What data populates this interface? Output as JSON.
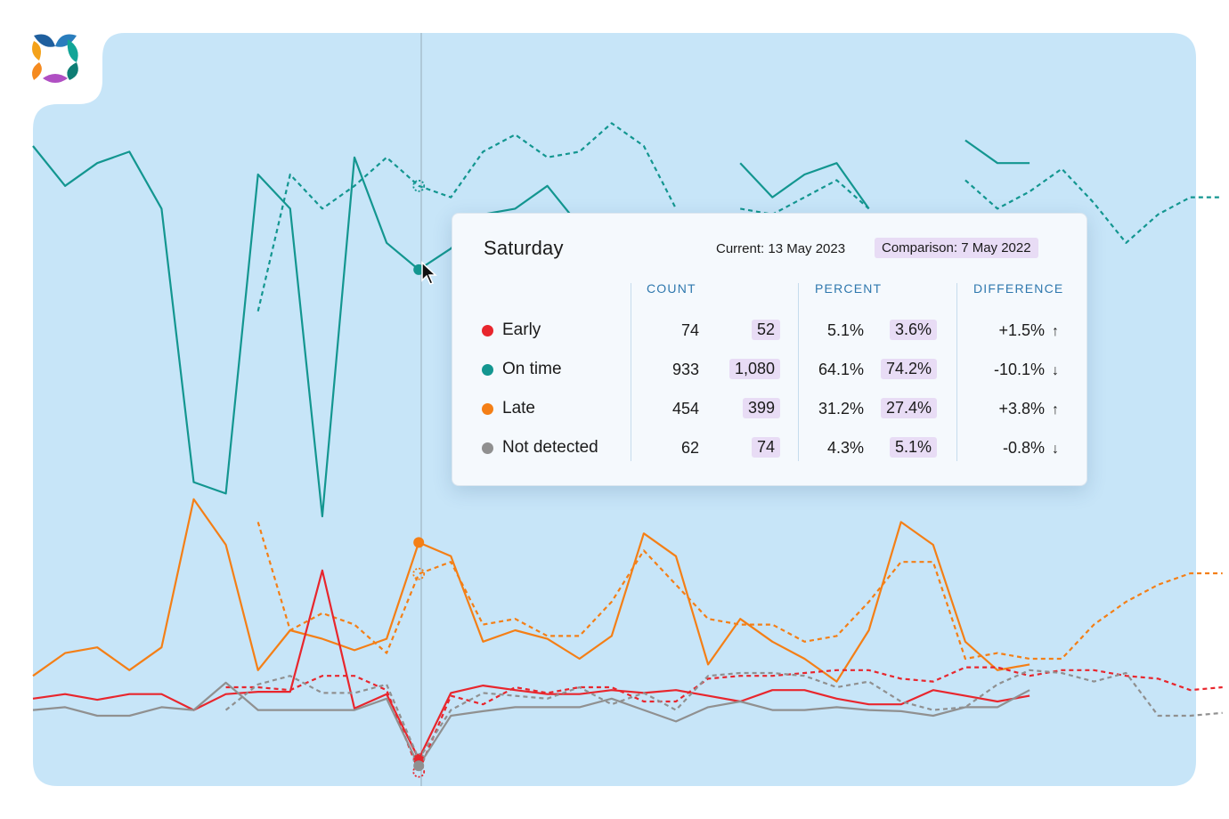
{
  "tooltip": {
    "day": "Saturday",
    "current_label": "Current: 13 May 2023",
    "comparison_label": "Comparison: 7 May 2022",
    "headers": {
      "count": "COUNT",
      "percent": "PERCENT",
      "difference": "DIFFERENCE"
    },
    "rows": [
      {
        "label": "Early",
        "color": "#e8262d",
        "count": "74",
        "count_cmp": "52",
        "pct": "5.1%",
        "pct_cmp": "3.6%",
        "diff": "+1.5%",
        "dir": "up"
      },
      {
        "label": "On time",
        "color": "#139690",
        "count": "933",
        "count_cmp": "1,080",
        "pct": "64.1%",
        "pct_cmp": "74.2%",
        "diff": "-10.1%",
        "dir": "down"
      },
      {
        "label": "Late",
        "color": "#f47f16",
        "count": "454",
        "count_cmp": "399",
        "pct": "31.2%",
        "pct_cmp": "27.4%",
        "diff": "+3.8%",
        "dir": "up"
      },
      {
        "label": "Not detected",
        "color": "#909090",
        "count": "62",
        "count_cmp": "74",
        "pct": "4.3%",
        "pct_cmp": "5.1%",
        "diff": "-0.8%",
        "dir": "down"
      }
    ]
  },
  "chart_data": {
    "type": "line",
    "highlighted_x": 12,
    "ylim": [
      0,
      1200
    ],
    "grid": false,
    "series": [
      {
        "key": "on_time",
        "period": "current",
        "color": "#139690",
        "dashed": false,
        "points": [
          [
            0,
            1150
          ],
          [
            1,
            1080
          ],
          [
            2,
            1120
          ],
          [
            3,
            1140
          ],
          [
            4,
            1040
          ],
          [
            5,
            560
          ],
          [
            6,
            540
          ],
          [
            7,
            1100
          ],
          [
            8,
            1040
          ],
          [
            9,
            500
          ],
          [
            10,
            1130
          ],
          [
            11,
            980
          ],
          [
            12,
            933
          ],
          [
            13,
            970
          ],
          [
            14,
            1030
          ],
          [
            15,
            1040
          ],
          [
            16,
            1080
          ],
          [
            17,
            1010
          ],
          [
            18,
            null
          ],
          [
            19,
            null
          ],
          [
            20,
            null
          ],
          [
            21,
            null
          ],
          [
            22,
            1120
          ],
          [
            23,
            1060
          ],
          [
            24,
            1100
          ],
          [
            25,
            1120
          ],
          [
            26,
            1040
          ],
          [
            27,
            null
          ],
          [
            28,
            null
          ],
          [
            29,
            1160
          ],
          [
            30,
            1120
          ],
          [
            31,
            1120
          ]
        ]
      },
      {
        "key": "on_time",
        "period": "comparison",
        "color": "#139690",
        "dashed": true,
        "points": [
          [
            7,
            860
          ],
          [
            8,
            1100
          ],
          [
            9,
            1040
          ],
          [
            10,
            1080
          ],
          [
            11,
            1130
          ],
          [
            12,
            1080
          ],
          [
            13,
            1060
          ],
          [
            14,
            1140
          ],
          [
            15,
            1170
          ],
          [
            16,
            1130
          ],
          [
            17,
            1140
          ],
          [
            18,
            1190
          ],
          [
            19,
            1150
          ],
          [
            20,
            1040
          ],
          [
            21,
            null
          ],
          [
            22,
            1040
          ],
          [
            23,
            1030
          ],
          [
            24,
            1060
          ],
          [
            25,
            1090
          ],
          [
            26,
            1040
          ],
          [
            27,
            null
          ],
          [
            28,
            null
          ],
          [
            29,
            1090
          ],
          [
            30,
            1040
          ],
          [
            31,
            1070
          ],
          [
            32,
            1110
          ],
          [
            33,
            1050
          ],
          [
            34,
            980
          ],
          [
            35,
            1030
          ],
          [
            36,
            1060
          ],
          [
            37,
            1060
          ]
        ]
      },
      {
        "key": "late",
        "period": "current",
        "color": "#f47f16",
        "dashed": false,
        "points": [
          [
            0,
            220
          ],
          [
            1,
            260
          ],
          [
            2,
            270
          ],
          [
            3,
            230
          ],
          [
            4,
            270
          ],
          [
            5,
            530
          ],
          [
            6,
            450
          ],
          [
            7,
            230
          ],
          [
            8,
            300
          ],
          [
            9,
            285
          ],
          [
            10,
            265
          ],
          [
            11,
            285
          ],
          [
            12,
            454
          ],
          [
            13,
            430
          ],
          [
            14,
            280
          ],
          [
            15,
            300
          ],
          [
            16,
            285
          ],
          [
            17,
            250
          ],
          [
            18,
            290
          ],
          [
            19,
            470
          ],
          [
            20,
            430
          ],
          [
            21,
            240
          ],
          [
            22,
            320
          ],
          [
            23,
            280
          ],
          [
            24,
            250
          ],
          [
            25,
            210
          ],
          [
            26,
            300
          ],
          [
            27,
            490
          ],
          [
            28,
            450
          ],
          [
            29,
            280
          ],
          [
            30,
            230
          ],
          [
            31,
            240
          ]
        ]
      },
      {
        "key": "late",
        "period": "comparison",
        "color": "#f47f16",
        "dashed": true,
        "points": [
          [
            7,
            490
          ],
          [
            8,
            300
          ],
          [
            9,
            330
          ],
          [
            10,
            310
          ],
          [
            11,
            260
          ],
          [
            12,
            399
          ],
          [
            13,
            420
          ],
          [
            14,
            310
          ],
          [
            15,
            320
          ],
          [
            16,
            290
          ],
          [
            17,
            290
          ],
          [
            18,
            350
          ],
          [
            19,
            440
          ],
          [
            20,
            380
          ],
          [
            21,
            320
          ],
          [
            22,
            310
          ],
          [
            23,
            310
          ],
          [
            24,
            280
          ],
          [
            25,
            290
          ],
          [
            26,
            350
          ],
          [
            27,
            420
          ],
          [
            28,
            420
          ],
          [
            29,
            250
          ],
          [
            30,
            260
          ],
          [
            31,
            250
          ],
          [
            32,
            250
          ],
          [
            33,
            310
          ],
          [
            34,
            350
          ],
          [
            35,
            380
          ],
          [
            36,
            400
          ],
          [
            37,
            400
          ]
        ]
      },
      {
        "key": "early",
        "period": "current",
        "color": "#e8262d",
        "dashed": false,
        "points": [
          [
            0,
            180
          ],
          [
            1,
            188
          ],
          [
            2,
            178
          ],
          [
            3,
            188
          ],
          [
            4,
            188
          ],
          [
            5,
            160
          ],
          [
            6,
            188
          ],
          [
            7,
            192
          ],
          [
            8,
            192
          ],
          [
            9,
            405
          ],
          [
            10,
            163
          ],
          [
            11,
            188
          ],
          [
            12,
            74
          ],
          [
            13,
            190
          ],
          [
            14,
            203
          ],
          [
            15,
            195
          ],
          [
            16,
            188
          ],
          [
            17,
            188
          ],
          [
            18,
            195
          ],
          [
            19,
            190
          ],
          [
            20,
            195
          ],
          [
            21,
            185
          ],
          [
            22,
            175
          ],
          [
            23,
            195
          ],
          [
            24,
            195
          ],
          [
            25,
            180
          ],
          [
            26,
            170
          ],
          [
            27,
            170
          ],
          [
            28,
            195
          ],
          [
            29,
            185
          ],
          [
            30,
            175
          ],
          [
            31,
            185
          ]
        ]
      },
      {
        "key": "early",
        "period": "comparison",
        "color": "#e8262d",
        "dashed": true,
        "points": [
          [
            6,
            200
          ],
          [
            7,
            200
          ],
          [
            8,
            195
          ],
          [
            9,
            220
          ],
          [
            10,
            220
          ],
          [
            11,
            195
          ],
          [
            12,
            52
          ],
          [
            13,
            185
          ],
          [
            14,
            170
          ],
          [
            15,
            200
          ],
          [
            16,
            190
          ],
          [
            17,
            200
          ],
          [
            18,
            200
          ],
          [
            19,
            175
          ],
          [
            20,
            175
          ],
          [
            21,
            215
          ],
          [
            22,
            220
          ],
          [
            23,
            220
          ],
          [
            24,
            225
          ],
          [
            25,
            230
          ],
          [
            26,
            230
          ],
          [
            27,
            215
          ],
          [
            28,
            210
          ],
          [
            29,
            235
          ],
          [
            30,
            235
          ],
          [
            31,
            220
          ],
          [
            32,
            230
          ],
          [
            33,
            230
          ],
          [
            34,
            220
          ],
          [
            35,
            215
          ],
          [
            36,
            195
          ],
          [
            37,
            200
          ]
        ]
      },
      {
        "key": "not_detected",
        "period": "current",
        "color": "#909090",
        "dashed": false,
        "points": [
          [
            0,
            160
          ],
          [
            1,
            165
          ],
          [
            2,
            150
          ],
          [
            3,
            150
          ],
          [
            4,
            165
          ],
          [
            5,
            160
          ],
          [
            6,
            208
          ],
          [
            7,
            160
          ],
          [
            8,
            160
          ],
          [
            9,
            160
          ],
          [
            10,
            160
          ],
          [
            11,
            180
          ],
          [
            12,
            62
          ],
          [
            13,
            150
          ],
          [
            14,
            158
          ],
          [
            15,
            165
          ],
          [
            16,
            165
          ],
          [
            17,
            165
          ],
          [
            18,
            180
          ],
          [
            19,
            160
          ],
          [
            20,
            140
          ],
          [
            21,
            165
          ],
          [
            22,
            175
          ],
          [
            23,
            160
          ],
          [
            24,
            160
          ],
          [
            25,
            165
          ],
          [
            26,
            160
          ],
          [
            27,
            158
          ],
          [
            28,
            150
          ],
          [
            29,
            165
          ],
          [
            30,
            165
          ],
          [
            31,
            195
          ]
        ]
      },
      {
        "key": "not_detected",
        "period": "comparison",
        "color": "#909090",
        "dashed": true,
        "points": [
          [
            6,
            160
          ],
          [
            7,
            205
          ],
          [
            8,
            220
          ],
          [
            9,
            190
          ],
          [
            10,
            190
          ],
          [
            11,
            205
          ],
          [
            12,
            74
          ],
          [
            13,
            160
          ],
          [
            14,
            190
          ],
          [
            15,
            185
          ],
          [
            16,
            180
          ],
          [
            17,
            200
          ],
          [
            18,
            170
          ],
          [
            19,
            190
          ],
          [
            20,
            160
          ],
          [
            21,
            220
          ],
          [
            22,
            225
          ],
          [
            23,
            225
          ],
          [
            24,
            220
          ],
          [
            25,
            200
          ],
          [
            26,
            210
          ],
          [
            27,
            175
          ],
          [
            28,
            160
          ],
          [
            29,
            165
          ],
          [
            30,
            205
          ],
          [
            31,
            230
          ],
          [
            32,
            225
          ],
          [
            33,
            210
          ],
          [
            34,
            225
          ],
          [
            35,
            150
          ],
          [
            36,
            150
          ],
          [
            37,
            155
          ]
        ]
      }
    ]
  }
}
